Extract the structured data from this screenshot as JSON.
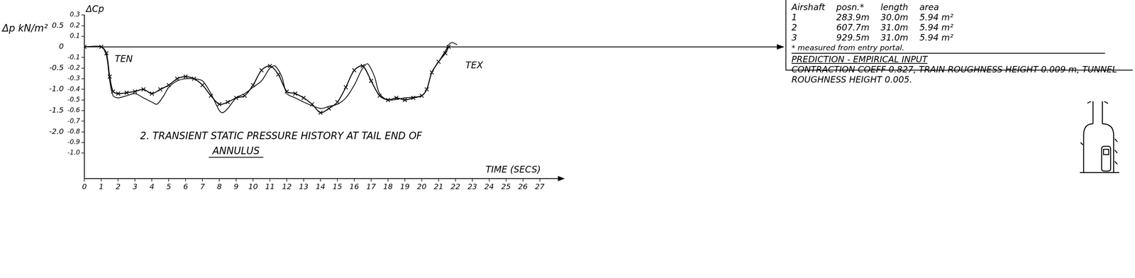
{
  "chart_data": {
    "type": "line",
    "title": [
      "2. TRANSIENT STATIC PRESSURE HISTORY AT TAIL END OF",
      "ANNULUS"
    ],
    "xlabel": "TIME (SECS)",
    "ylabel": "Δp kN/m²",
    "y2label": "ΔCp",
    "series": [
      {
        "color": "#000000",
        "marker": "x",
        "line_style": "solid",
        "x": [
          0,
          1.0,
          1.3,
          1.5,
          1.7,
          2.0,
          2.5,
          3.0,
          3.5,
          4.0,
          4.5,
          5.0,
          5.5,
          6.0,
          6.5,
          7.0,
          7.5,
          8.0,
          8.5,
          9.0,
          9.5,
          10.0,
          10.5,
          11.0,
          11.5,
          12.0,
          12.5,
          13.0,
          13.5,
          14.0,
          14.5,
          15.0,
          15.5,
          16.0,
          16.5,
          17.0,
          17.5,
          18.0,
          18.5,
          19.0,
          19.5,
          20.0,
          20.3,
          20.6,
          21.0,
          21.4,
          21.6
        ],
        "values": [
          0,
          0,
          -0.15,
          -0.7,
          -1.05,
          -1.1,
          -1.08,
          -1.05,
          -1.0,
          -1.1,
          -1.0,
          -0.9,
          -0.75,
          -0.7,
          -0.75,
          -0.9,
          -1.15,
          -1.35,
          -1.3,
          -1.2,
          -1.15,
          -0.9,
          -0.55,
          -0.45,
          -0.65,
          -1.05,
          -1.1,
          -1.2,
          -1.35,
          -1.55,
          -1.45,
          -1.3,
          -0.95,
          -0.55,
          -0.45,
          -0.8,
          -1.15,
          -1.25,
          -1.2,
          -1.25,
          -1.2,
          -1.15,
          -1.0,
          -0.6,
          -0.35,
          -0.15,
          0.0
        ]
      },
      {
        "color": "#000000",
        "marker": "none",
        "line_style": "solid",
        "x": [
          0,
          1.0,
          1.3,
          1.5,
          1.7,
          2.0,
          2.5,
          3.0,
          3.5,
          4.0,
          4.3,
          4.7,
          5.0,
          5.5,
          6.0,
          6.5,
          7.0,
          7.5,
          8.0,
          8.2,
          8.5,
          9.0,
          9.5,
          10.0,
          10.5,
          11.0,
          11.3,
          11.7,
          12.0,
          12.5,
          13.0,
          14.0,
          14.5,
          15.0,
          15.5,
          16.0,
          16.5,
          16.8,
          17.2,
          17.5,
          18.0,
          19.0,
          20.0,
          20.3,
          20.6,
          21.0,
          21.4,
          21.6,
          21.8,
          22.1
        ],
        "values": [
          0,
          0,
          -0.2,
          -0.8,
          -1.15,
          -1.2,
          -1.15,
          -1.1,
          -1.2,
          -1.3,
          -1.35,
          -1.15,
          -0.95,
          -0.8,
          -0.75,
          -0.75,
          -0.8,
          -1.1,
          -1.5,
          -1.55,
          -1.45,
          -1.2,
          -1.1,
          -0.95,
          -0.8,
          -0.5,
          -0.45,
          -0.7,
          -1.1,
          -1.2,
          -1.3,
          -1.45,
          -1.4,
          -1.35,
          -1.2,
          -0.9,
          -0.5,
          -0.4,
          -0.7,
          -1.1,
          -1.25,
          -1.2,
          -1.15,
          -1.0,
          -0.6,
          -0.35,
          -0.1,
          0.05,
          0.1,
          0.05
        ]
      }
    ],
    "xlim": [
      0,
      27.5
    ],
    "xticks": [
      0,
      1,
      2,
      3,
      4,
      5,
      6,
      7,
      8,
      9,
      10,
      11,
      12,
      13,
      14,
      15,
      16,
      17,
      18,
      19,
      20,
      21,
      22,
      23,
      24,
      25,
      26,
      27
    ],
    "ylim": [
      -3.1,
      0.75
    ],
    "yticks": [
      0.5,
      0,
      -0.5,
      {
        "value": -1,
        "label": "-1.0"
      },
      -1.5,
      {
        "value": -2,
        "label": "-2.0"
      }
    ],
    "y2lim": [
      -1.24,
      0.3
    ],
    "y2ticks": [
      0.3,
      0.2,
      0.1,
      -0.1,
      -0.2,
      -0.3,
      -0.4,
      -0.5,
      -0.6,
      -0.7,
      -0.8,
      -0.9,
      {
        "value": -1,
        "label": "-1.0"
      }
    ],
    "grid": false,
    "annotations": [
      {
        "text": "TEN",
        "x": 1.8,
        "y": -0.35
      },
      {
        "text": "TEX",
        "x": 22.6,
        "y": -0.5
      }
    ]
  },
  "notes_box": {
    "header": [
      "Airshaft",
      "posn.*",
      "length",
      "area"
    ],
    "rows": [
      [
        "1",
        "283.9m",
        "30.0m",
        "5.94 m²"
      ],
      [
        "2",
        "607.7m",
        "31.0m",
        "5.94 m²"
      ],
      [
        "3",
        "929.5m",
        "31.0m",
        "5.94 m²"
      ]
    ],
    "footnote": "* measured from entry portal.",
    "heading": "PREDICTION - EMPIRICAL INPUT",
    "text": "CONTRACTION COEFF 0.827, TRAIN ROUGHNESS HEIGHT 0.009 m, TUNNEL ROUGHNESS HEIGHT 0.005."
  }
}
